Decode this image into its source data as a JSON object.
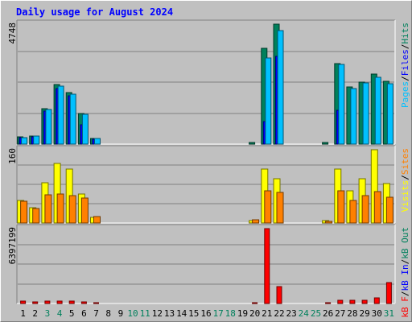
{
  "header": {
    "title": "Daily usage for August 2024"
  },
  "colors": {
    "background": "#c0c0c0",
    "panel": "#c0c0c0",
    "grid": "#808080",
    "title": "#0000ff",
    "hits": "#00805c",
    "files": "#0000ff",
    "pages": "#00c0ff",
    "visits": "#ffff00",
    "sites": "#ff8000",
    "kbin": "#0000ff",
    "kbout": "#00805c",
    "kbf": "#ff0000",
    "weekend": "#00805c",
    "weekday": "#000000",
    "separator": "#000000"
  },
  "chart_data": [
    {
      "type": "bar",
      "title": "Daily usage for August 2024",
      "panel": "top",
      "max_label": "4748",
      "ylim": [
        0,
        4748
      ],
      "legend": [
        {
          "name": "Pages",
          "color_key": "pages"
        },
        {
          "name": "/",
          "color_key": "separator"
        },
        {
          "name": "Files",
          "color_key": "files"
        },
        {
          "name": "/",
          "color_key": "separator"
        },
        {
          "name": "Hits",
          "color_key": "hits"
        }
      ],
      "categories": [
        "1",
        "2",
        "3",
        "4",
        "5",
        "6",
        "7",
        "8",
        "9",
        "10",
        "11",
        "12",
        "13",
        "14",
        "15",
        "16",
        "17",
        "18",
        "19",
        "20",
        "21",
        "22",
        "23",
        "24",
        "25",
        "26",
        "27",
        "28",
        "29",
        "30",
        "31"
      ],
      "series": [
        {
          "name": "Hits",
          "color_key": "hits",
          "values": [
            290,
            330,
            1400,
            2350,
            2030,
            1210,
            220,
            0,
            0,
            0,
            0,
            0,
            0,
            0,
            0,
            0,
            0,
            0,
            0,
            55,
            3780,
            4748,
            0,
            0,
            0,
            55,
            3200,
            2250,
            2460,
            2770,
            2490
          ]
        },
        {
          "name": "Files",
          "color_key": "files",
          "values": [
            260,
            300,
            1320,
            2200,
            1900,
            780,
            200,
            0,
            0,
            0,
            0,
            0,
            0,
            0,
            0,
            0,
            0,
            0,
            0,
            0,
            900,
            3480,
            0,
            0,
            0,
            0,
            1330,
            0,
            0,
            0,
            0
          ]
        },
        {
          "name": "Pages",
          "color_key": "pages",
          "values": [
            270,
            310,
            1370,
            2300,
            1980,
            1170,
            210,
            0,
            0,
            0,
            0,
            0,
            0,
            0,
            0,
            0,
            0,
            0,
            0,
            0,
            3400,
            4500,
            0,
            0,
            0,
            0,
            3150,
            2200,
            2410,
            2650,
            2400
          ]
        }
      ]
    },
    {
      "type": "bar",
      "panel": "middle",
      "max_label": "160",
      "ylim": [
        0,
        160
      ],
      "legend": [
        {
          "name": "Visits",
          "color_key": "visits"
        },
        {
          "name": "/",
          "color_key": "separator"
        },
        {
          "name": "Sites",
          "color_key": "sites"
        }
      ],
      "categories": [
        "1",
        "2",
        "3",
        "4",
        "5",
        "6",
        "7",
        "8",
        "9",
        "10",
        "11",
        "12",
        "13",
        "14",
        "15",
        "16",
        "17",
        "18",
        "19",
        "20",
        "21",
        "22",
        "23",
        "24",
        "25",
        "26",
        "27",
        "28",
        "29",
        "30",
        "31"
      ],
      "series": [
        {
          "name": "Visits",
          "color_key": "visits",
          "values": [
            50,
            34,
            88,
            130,
            118,
            64,
            12,
            0,
            0,
            0,
            0,
            0,
            0,
            0,
            0,
            0,
            0,
            0,
            0,
            6,
            118,
            97,
            0,
            0,
            0,
            5,
            118,
            70,
            97,
            160,
            87
          ]
        },
        {
          "name": "Sites",
          "color_key": "sites",
          "values": [
            48,
            31,
            62,
            64,
            60,
            54,
            14,
            0,
            0,
            0,
            0,
            0,
            0,
            0,
            0,
            0,
            0,
            0,
            0,
            7,
            70,
            66,
            0,
            0,
            0,
            4,
            70,
            49,
            59,
            68,
            56
          ]
        }
      ]
    },
    {
      "type": "bar",
      "panel": "bottom",
      "max_label": "6397199",
      "ylim": [
        0,
        6397199
      ],
      "legend": [
        {
          "name": "kB F",
          "color_key": "kbf"
        },
        {
          "name": "/",
          "color_key": "separator"
        },
        {
          "name": "kB In",
          "color_key": "kbin"
        },
        {
          "name": "/",
          "color_key": "separator"
        },
        {
          "name": "kB Out",
          "color_key": "kbout"
        }
      ],
      "categories": [
        "1",
        "2",
        "3",
        "4",
        "5",
        "6",
        "7",
        "8",
        "9",
        "10",
        "11",
        "12",
        "13",
        "14",
        "15",
        "16",
        "17",
        "18",
        "19",
        "20",
        "21",
        "22",
        "23",
        "24",
        "25",
        "26",
        "27",
        "28",
        "29",
        "30",
        "31"
      ],
      "series": [
        {
          "name": "kB F",
          "color_key": "kbf",
          "values": [
            180000,
            130000,
            230000,
            230000,
            200000,
            130000,
            100000,
            0,
            0,
            0,
            0,
            0,
            0,
            0,
            0,
            0,
            0,
            0,
            0,
            100000,
            6397199,
            1450000,
            0,
            0,
            0,
            100000,
            300000,
            250000,
            280000,
            450000,
            1800000
          ]
        }
      ]
    }
  ],
  "x_axis": {
    "days": [
      "1",
      "2",
      "3",
      "4",
      "5",
      "6",
      "7",
      "8",
      "9",
      "10",
      "11",
      "12",
      "13",
      "14",
      "15",
      "16",
      "17",
      "18",
      "19",
      "20",
      "21",
      "22",
      "23",
      "24",
      "25",
      "26",
      "27",
      "28",
      "29",
      "30",
      "31"
    ],
    "weekend": [
      false,
      false,
      true,
      true,
      false,
      false,
      false,
      false,
      false,
      true,
      true,
      false,
      false,
      false,
      false,
      false,
      true,
      true,
      false,
      false,
      false,
      false,
      false,
      true,
      true,
      false,
      false,
      false,
      false,
      false,
      true
    ]
  }
}
